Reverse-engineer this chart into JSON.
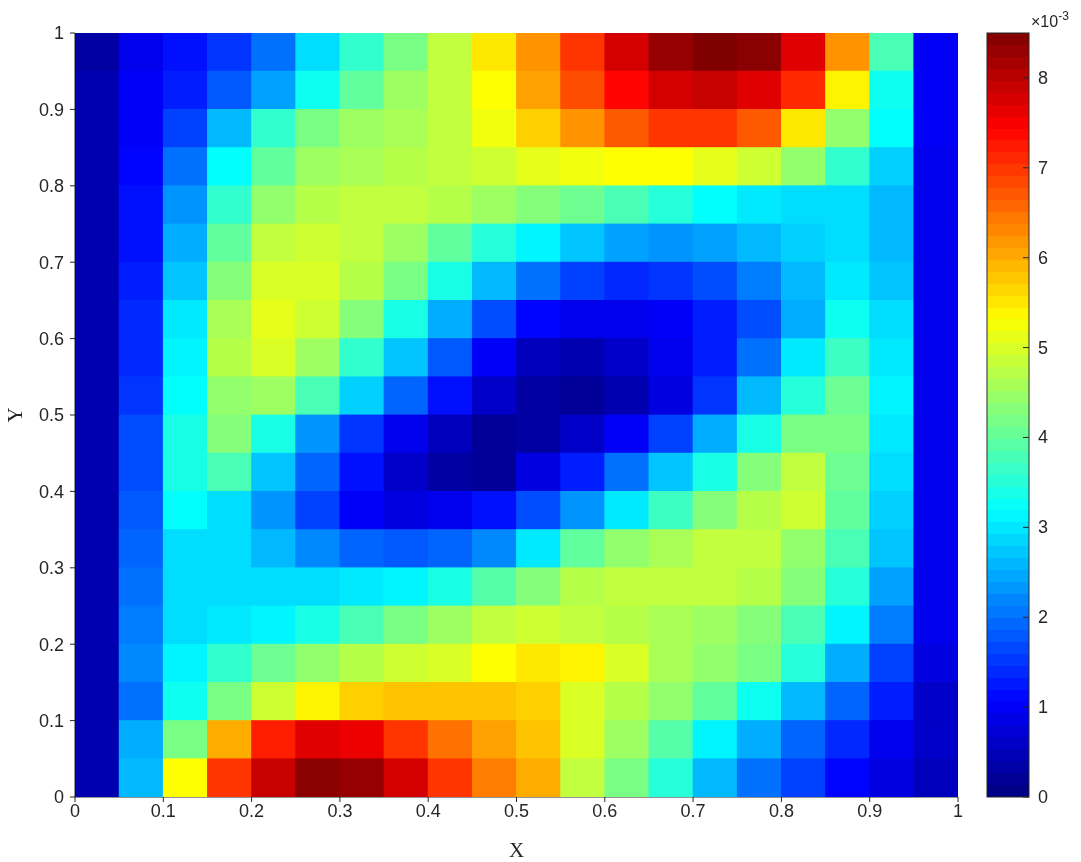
{
  "chart_data": {
    "type": "heatmap",
    "xlabel": "X",
    "ylabel": "Y",
    "clabel": "×10$^{-3}$",
    "xlim": [
      0,
      1
    ],
    "ylim": [
      0,
      1
    ],
    "xticks": [
      0,
      0.1,
      0.2,
      0.3,
      0.4,
      0.5,
      0.6,
      0.7,
      0.8,
      0.9,
      1
    ],
    "yticks": [
      0,
      0.1,
      0.2,
      0.3,
      0.4,
      0.5,
      0.6,
      0.7,
      0.8,
      0.9,
      1
    ],
    "clim": [
      0,
      8.5
    ],
    "cticks": [
      0,
      1,
      2,
      3,
      4,
      5,
      6,
      7,
      8
    ],
    "cells": [
      [
        0.3,
        0.9,
        1.2,
        1.5,
        2.0,
        2.9,
        3.6,
        4.2,
        4.8,
        5.5,
        6.2,
        7.0,
        7.8,
        8.3,
        8.5,
        8.4,
        7.7,
        6.2,
        3.8,
        1.0
      ],
      [
        0.4,
        1.0,
        1.3,
        1.8,
        2.4,
        3.3,
        4.0,
        4.5,
        4.8,
        5.3,
        6.1,
        6.8,
        7.4,
        7.8,
        7.9,
        7.7,
        7.1,
        5.4,
        3.3,
        1.0
      ],
      [
        0.4,
        1.0,
        1.6,
        2.6,
        3.6,
        4.2,
        4.5,
        4.6,
        4.8,
        5.2,
        5.7,
        6.2,
        6.7,
        7.0,
        7.0,
        6.7,
        5.5,
        4.4,
        3.2,
        1.0
      ],
      [
        0.4,
        1.1,
        2.0,
        3.2,
        4.0,
        4.5,
        4.6,
        4.7,
        4.8,
        4.9,
        5.1,
        5.2,
        5.3,
        5.3,
        5.1,
        4.9,
        4.4,
        3.6,
        2.8,
        0.9
      ],
      [
        0.4,
        1.2,
        2.3,
        3.6,
        4.4,
        4.7,
        4.8,
        4.8,
        4.7,
        4.5,
        4.3,
        4.1,
        3.8,
        3.5,
        3.2,
        3.0,
        2.9,
        2.9,
        2.6,
        0.9
      ],
      [
        0.4,
        1.2,
        2.5,
        4.0,
        4.8,
        4.9,
        4.8,
        4.5,
        4.0,
        3.5,
        3.1,
        2.7,
        2.4,
        2.3,
        2.4,
        2.6,
        2.8,
        2.9,
        2.6,
        0.9
      ],
      [
        0.4,
        1.3,
        2.7,
        4.3,
        5.0,
        5.0,
        4.7,
        4.2,
        3.4,
        2.6,
        2.0,
        1.6,
        1.4,
        1.5,
        1.7,
        2.1,
        2.6,
        3.0,
        2.7,
        0.9
      ],
      [
        0.4,
        1.4,
        3.0,
        4.6,
        5.1,
        4.9,
        4.3,
        3.4,
        2.5,
        1.7,
        1.1,
        0.9,
        0.9,
        1.0,
        1.3,
        1.7,
        2.5,
        3.3,
        2.9,
        0.9
      ],
      [
        0.4,
        1.4,
        3.1,
        4.7,
        5.0,
        4.5,
        3.6,
        2.7,
        1.8,
        1.0,
        0.5,
        0.4,
        0.6,
        0.9,
        1.3,
        2.0,
        3.0,
        3.7,
        3.0,
        0.9
      ],
      [
        0.4,
        1.5,
        3.2,
        4.4,
        4.5,
        3.8,
        2.8,
        1.9,
        1.2,
        0.6,
        0.3,
        0.2,
        0.4,
        0.8,
        1.5,
        2.6,
        3.5,
        4.1,
        3.1,
        0.9
      ],
      [
        0.4,
        1.7,
        3.4,
        4.3,
        3.4,
        2.3,
        1.5,
        0.9,
        0.5,
        0.2,
        0.3,
        0.6,
        1.0,
        1.6,
        2.5,
        3.4,
        4.2,
        4.2,
        3.0,
        0.9
      ],
      [
        0.4,
        1.7,
        3.4,
        3.8,
        2.7,
        1.9,
        1.2,
        0.6,
        0.3,
        0.2,
        0.8,
        1.3,
        2.0,
        2.7,
        3.4,
        4.3,
        4.8,
        4.1,
        2.9,
        0.9
      ],
      [
        0.4,
        1.8,
        3.2,
        2.9,
        2.3,
        1.6,
        1.0,
        0.8,
        0.9,
        1.2,
        1.7,
        2.3,
        3.0,
        3.7,
        4.3,
        4.7,
        4.9,
        4.0,
        2.8,
        0.9
      ],
      [
        0.4,
        1.9,
        2.9,
        2.9,
        2.6,
        2.2,
        1.9,
        1.8,
        1.9,
        2.2,
        3.0,
        4.0,
        4.4,
        4.6,
        4.8,
        4.8,
        4.4,
        3.8,
        2.7,
        0.9
      ],
      [
        0.4,
        2.0,
        2.9,
        2.9,
        2.9,
        2.9,
        3.0,
        3.1,
        3.4,
        3.9,
        4.3,
        4.7,
        4.8,
        4.8,
        4.8,
        4.7,
        4.3,
        3.5,
        2.4,
        0.9
      ],
      [
        0.4,
        2.1,
        2.9,
        3.0,
        3.1,
        3.4,
        3.8,
        4.2,
        4.5,
        4.8,
        4.9,
        4.8,
        4.7,
        4.6,
        4.5,
        4.3,
        3.8,
        3.1,
        2.1,
        0.9
      ],
      [
        0.4,
        2.2,
        3.1,
        3.6,
        4.1,
        4.4,
        4.7,
        4.9,
        5.0,
        5.3,
        5.5,
        5.4,
        5.0,
        4.6,
        4.4,
        4.2,
        3.5,
        2.5,
        1.6,
        0.8
      ],
      [
        0.4,
        2.0,
        3.3,
        4.2,
        4.9,
        5.4,
        5.7,
        5.8,
        5.8,
        5.8,
        5.7,
        5.0,
        4.7,
        4.4,
        4.0,
        3.3,
        2.6,
        1.9,
        1.3,
        0.6
      ],
      [
        0.4,
        2.5,
        4.2,
        6.0,
        7.2,
        7.7,
        7.6,
        7.0,
        6.5,
        6.1,
        5.8,
        5.0,
        4.5,
        3.9,
        3.1,
        2.5,
        1.9,
        1.4,
        0.9,
        0.6
      ],
      [
        0.4,
        2.6,
        5.3,
        7.0,
        7.9,
        8.4,
        8.3,
        7.8,
        7.0,
        6.4,
        6.0,
        4.8,
        4.2,
        3.5,
        2.6,
        2.0,
        1.6,
        1.1,
        0.8,
        0.5
      ]
    ]
  }
}
